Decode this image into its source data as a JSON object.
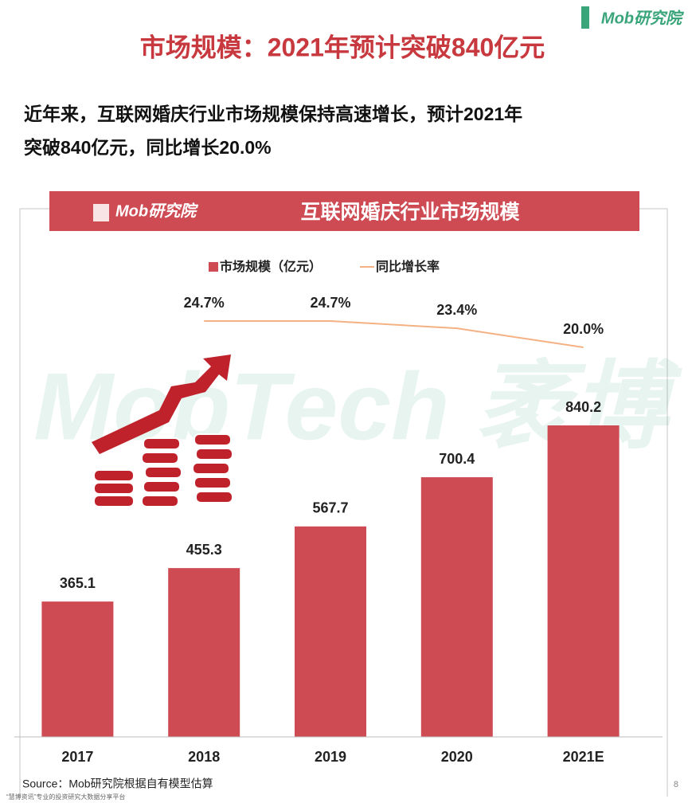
{
  "header": {
    "title": "市场规模：2021年预计突破840亿元",
    "logo": "Mob研究院",
    "subtitle_lines": [
      "近年来，互联网婚庆行业市场规模保持高速增长，预计2021年",
      "突破840亿元，同比增长20.0%"
    ]
  },
  "watermark": "MobTech 袤博",
  "chart_data": {
    "type": "bar",
    "title": "互联网婚庆行业市场规模",
    "logo": "Mob研究院",
    "categories": [
      "2017",
      "2018",
      "2019",
      "2020",
      "2021E"
    ],
    "series": [
      {
        "name": "市场规模（亿元）",
        "type": "bar",
        "color": "#cf4b54",
        "values": [
          365.1,
          455.3,
          567.7,
          700.4,
          840.2
        ]
      },
      {
        "name": "同比增长率",
        "type": "line",
        "axis": "y2",
        "color": "#f4b183",
        "values": [
          null,
          24.7,
          24.7,
          23.4,
          20.0
        ],
        "value_labels": [
          null,
          "24.7%",
          "24.7%",
          "23.4%",
          "20.0%"
        ]
      }
    ]
  },
  "footer": {
    "source": "Source：Mob研究院根据自有模型估算",
    "note": "“慧博资讯”专业的投资研究大数据分享平台",
    "page": "8"
  }
}
